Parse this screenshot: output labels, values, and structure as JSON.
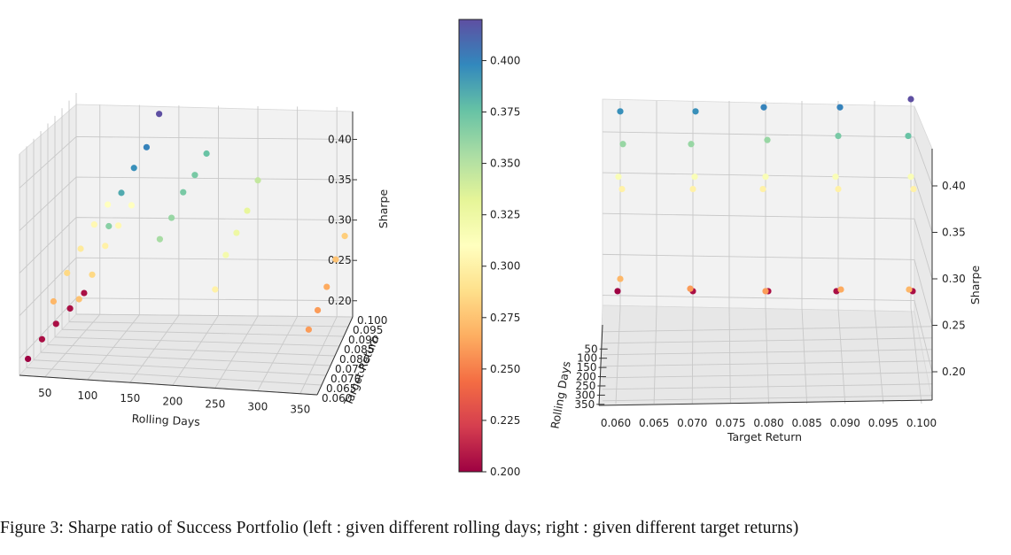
{
  "caption": "Figure 3: Sharpe ratio of Success Portfolio (left : given different rolling days; right : given different target returns)",
  "chart_data": [
    {
      "type": "scatter",
      "view": "left",
      "x_label": "Rolling Days",
      "y_label": "Target Return",
      "z_label": "Sharpe",
      "x_ticks": [
        "50",
        "100",
        "150",
        "200",
        "250",
        "300",
        "350"
      ],
      "y_ticks": [
        "0.060",
        "0.065",
        "0.070",
        "0.075",
        "0.080",
        "0.085",
        "0.090",
        "0.095",
        "0.100"
      ],
      "z_ticks": [
        "0.20",
        "0.25",
        "0.30",
        "0.35",
        "0.40"
      ],
      "xlim": [
        20,
        370
      ],
      "ylim": [
        0.06,
        0.1
      ],
      "zlim": [
        0.18,
        0.44
      ],
      "grid": true,
      "points": [
        {
          "x": 30,
          "y": 0.06,
          "z": 0.2
        },
        {
          "x": 30,
          "y": 0.07,
          "z": 0.205
        },
        {
          "x": 30,
          "y": 0.08,
          "z": 0.205
        },
        {
          "x": 30,
          "y": 0.09,
          "z": 0.205
        },
        {
          "x": 30,
          "y": 0.1,
          "z": 0.205
        },
        {
          "x": 60,
          "y": 0.06,
          "z": 0.27
        },
        {
          "x": 60,
          "y": 0.07,
          "z": 0.285
        },
        {
          "x": 60,
          "y": 0.08,
          "z": 0.295
        },
        {
          "x": 60,
          "y": 0.09,
          "z": 0.305
        },
        {
          "x": 60,
          "y": 0.1,
          "z": 0.31
        },
        {
          "x": 90,
          "y": 0.06,
          "z": 0.275
        },
        {
          "x": 90,
          "y": 0.07,
          "z": 0.285
        },
        {
          "x": 90,
          "y": 0.08,
          "z": 0.3
        },
        {
          "x": 90,
          "y": 0.09,
          "z": 0.305
        },
        {
          "x": 90,
          "y": 0.1,
          "z": 0.31
        },
        {
          "x": 125,
          "y": 0.06,
          "z": 0.365
        },
        {
          "x": 125,
          "y": 0.07,
          "z": 0.385
        },
        {
          "x": 125,
          "y": 0.08,
          "z": 0.395
        },
        {
          "x": 125,
          "y": 0.09,
          "z": 0.4
        },
        {
          "x": 125,
          "y": 0.1,
          "z": 0.42
        },
        {
          "x": 185,
          "y": 0.06,
          "z": 0.355
        },
        {
          "x": 185,
          "y": 0.07,
          "z": 0.36
        },
        {
          "x": 185,
          "y": 0.08,
          "z": 0.37
        },
        {
          "x": 185,
          "y": 0.09,
          "z": 0.37
        },
        {
          "x": 185,
          "y": 0.1,
          "z": 0.375
        },
        {
          "x": 250,
          "y": 0.06,
          "z": 0.3
        },
        {
          "x": 250,
          "y": 0.07,
          "z": 0.32
        },
        {
          "x": 250,
          "y": 0.08,
          "z": 0.325
        },
        {
          "x": 250,
          "y": 0.09,
          "z": 0.33
        },
        {
          "x": 250,
          "y": 0.1,
          "z": 0.345
        },
        {
          "x": 360,
          "y": 0.06,
          "z": 0.26
        },
        {
          "x": 360,
          "y": 0.07,
          "z": 0.26
        },
        {
          "x": 360,
          "y": 0.08,
          "z": 0.265
        },
        {
          "x": 360,
          "y": 0.09,
          "z": 0.275
        },
        {
          "x": 360,
          "y": 0.1,
          "z": 0.28
        }
      ]
    },
    {
      "type": "scatter",
      "view": "right",
      "x_label": "Target Return",
      "y_label": "Rolling Days",
      "z_label": "Sharpe",
      "x_ticks": [
        "0.060",
        "0.065",
        "0.070",
        "0.075",
        "0.080",
        "0.085",
        "0.090",
        "0.095",
        "0.100"
      ],
      "y_ticks": [
        "50",
        "100",
        "150",
        "200",
        "250",
        "300",
        "350"
      ],
      "z_ticks": [
        "0.20",
        "0.25",
        "0.30",
        "0.35",
        "0.40"
      ],
      "xlim": [
        0.06,
        0.1
      ],
      "ylim": [
        20,
        370
      ],
      "zlim": [
        0.18,
        0.44
      ],
      "grid": true,
      "points": [
        {
          "x": 0.06,
          "z": 0.205,
          "c": 0.2
        },
        {
          "x": 0.07,
          "z": 0.205,
          "c": 0.205
        },
        {
          "x": 0.08,
          "z": 0.205,
          "c": 0.205
        },
        {
          "x": 0.09,
          "z": 0.205,
          "c": 0.205
        },
        {
          "x": 0.1,
          "z": 0.205,
          "c": 0.205
        },
        {
          "x": 0.06,
          "z": 0.22,
          "c": 0.27
        },
        {
          "x": 0.07,
          "z": 0.208,
          "c": 0.26
        },
        {
          "x": 0.08,
          "z": 0.205,
          "c": 0.26
        },
        {
          "x": 0.09,
          "z": 0.207,
          "c": 0.265
        },
        {
          "x": 0.1,
          "z": 0.207,
          "c": 0.27
        },
        {
          "x": 0.06,
          "z": 0.33,
          "c": 0.3
        },
        {
          "x": 0.07,
          "z": 0.33,
          "c": 0.3
        },
        {
          "x": 0.08,
          "z": 0.33,
          "c": 0.3
        },
        {
          "x": 0.09,
          "z": 0.33,
          "c": 0.3
        },
        {
          "x": 0.1,
          "z": 0.33,
          "c": 0.3
        },
        {
          "x": 0.06,
          "z": 0.345,
          "c": 0.315
        },
        {
          "x": 0.07,
          "z": 0.345,
          "c": 0.315
        },
        {
          "x": 0.08,
          "z": 0.345,
          "c": 0.315
        },
        {
          "x": 0.09,
          "z": 0.345,
          "c": 0.315
        },
        {
          "x": 0.1,
          "z": 0.345,
          "c": 0.315
        },
        {
          "x": 0.06,
          "z": 0.385,
          "c": 0.36
        },
        {
          "x": 0.07,
          "z": 0.385,
          "c": 0.36
        },
        {
          "x": 0.08,
          "z": 0.39,
          "c": 0.36
        },
        {
          "x": 0.09,
          "z": 0.395,
          "c": 0.37
        },
        {
          "x": 0.1,
          "z": 0.395,
          "c": 0.375
        },
        {
          "x": 0.06,
          "z": 0.425,
          "c": 0.395
        },
        {
          "x": 0.07,
          "z": 0.425,
          "c": 0.395
        },
        {
          "x": 0.08,
          "z": 0.43,
          "c": 0.4
        },
        {
          "x": 0.09,
          "z": 0.43,
          "c": 0.4
        },
        {
          "x": 0.1,
          "z": 0.44,
          "c": 0.42
        }
      ]
    }
  ],
  "colorbar": {
    "ticks": [
      "0.200",
      "0.225",
      "0.250",
      "0.275",
      "0.300",
      "0.325",
      "0.350",
      "0.375",
      "0.400"
    ],
    "min": 0.2,
    "max": 0.42,
    "colormap": "Spectral",
    "stops": [
      "#9e0142",
      "#d53e4f",
      "#f46d43",
      "#fdae61",
      "#fee08b",
      "#ffffbf",
      "#e6f598",
      "#abdda4",
      "#66c2a5",
      "#3288bd",
      "#5e4fa2"
    ]
  }
}
